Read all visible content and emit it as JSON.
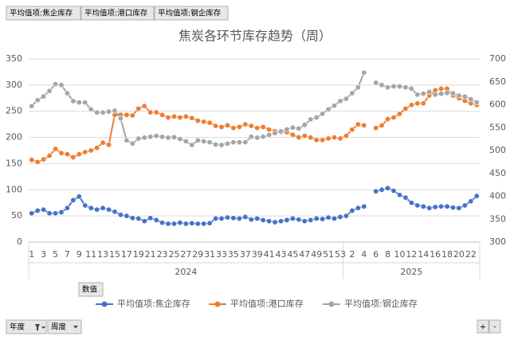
{
  "pivot": {
    "value_fields": [
      "平均值项:焦企库存",
      "平均值项:港口库存",
      "平均值项:钢企库存"
    ],
    "values_button": "数值",
    "axis_fields": [
      "年度",
      "周度"
    ],
    "zoom_buttons": [
      "+",
      "-"
    ]
  },
  "chart_data": {
    "type": "line",
    "title": "焦炭各环节库存趋势（周）",
    "category_groups": [
      {
        "label": "2024",
        "categories": [
          "1",
          null,
          "3",
          null,
          "5",
          null,
          "7",
          null,
          "9",
          null,
          "11",
          null,
          "13",
          null,
          "15",
          null,
          "17",
          null,
          "19",
          null,
          "21",
          null,
          "23",
          null,
          "25",
          null,
          "27",
          null,
          "29",
          null,
          "31",
          null,
          "33",
          null,
          "35",
          null,
          "37",
          null,
          "39",
          null,
          "41",
          null,
          "43",
          null,
          "45",
          null,
          "47",
          null,
          "49",
          null,
          "51",
          null,
          "53"
        ]
      },
      {
        "label": "2025",
        "categories": [
          null,
          "2",
          null,
          "4",
          null,
          "6",
          null,
          "8",
          null,
          "10",
          null,
          "12",
          null,
          "14",
          null,
          "16",
          null,
          "18",
          null,
          "20",
          null,
          "22",
          null
        ]
      }
    ],
    "series": [
      {
        "name": "平均值项:焦企库存",
        "color": "#4472c4",
        "values": [
          55,
          60,
          62,
          55,
          55,
          57,
          65,
          80,
          87,
          70,
          65,
          62,
          65,
          62,
          58,
          52,
          50,
          46,
          45,
          40,
          46,
          42,
          37,
          35,
          35,
          37,
          35,
          36,
          35,
          35,
          36,
          45,
          45,
          47,
          46,
          45,
          48,
          43,
          45,
          42,
          40,
          38,
          40,
          42,
          45,
          43,
          40,
          42,
          45,
          44,
          47,
          45,
          48,
          50,
          60,
          65,
          68,
          null,
          97,
          100,
          103,
          98,
          90,
          85,
          75,
          70,
          68,
          65,
          67,
          68,
          68,
          66,
          65,
          70,
          78,
          88
        ]
      },
      {
        "name": "平均值项:港口库存",
        "color": "#ed7d31",
        "values": [
          157,
          153,
          158,
          165,
          178,
          170,
          168,
          162,
          168,
          172,
          175,
          180,
          190,
          186,
          243,
          243,
          243,
          242,
          255,
          260,
          248,
          248,
          243,
          238,
          240,
          238,
          240,
          237,
          232,
          230,
          228,
          222,
          220,
          223,
          218,
          220,
          225,
          222,
          218,
          220,
          215,
          212,
          210,
          210,
          205,
          200,
          203,
          200,
          195,
          195,
          198,
          200,
          198,
          203,
          215,
          225,
          223,
          null,
          218,
          223,
          235,
          238,
          245,
          255,
          262,
          265,
          265,
          280,
          290,
          293,
          293,
          280,
          275,
          270,
          265,
          262
        ]
      },
      {
        "name": "平均值项:钢企库存",
        "color": "#a5a5a5",
        "axis": "y2",
        "values": [
          597,
          610,
          618,
          630,
          645,
          643,
          625,
          608,
          605,
          605,
          590,
          583,
          583,
          585,
          587,
          570,
          522,
          515,
          526,
          528,
          530,
          532,
          530,
          528,
          529,
          525,
          520,
          512,
          522,
          520,
          518,
          513,
          512,
          515,
          518,
          518,
          518,
          530,
          528,
          530,
          534,
          538,
          542,
          546,
          550,
          548,
          556,
          568,
          572,
          580,
          590,
          598,
          608,
          613,
          625,
          638,
          670,
          null,
          648,
          643,
          638,
          640,
          640,
          638,
          635,
          622,
          624,
          628,
          622,
          624,
          626,
          625,
          620,
          618,
          612,
          605
        ]
      }
    ],
    "ylim": [
      0,
      350
    ],
    "yticks": [
      0,
      50,
      100,
      150,
      200,
      250,
      300,
      350
    ],
    "y2lim": [
      300,
      700
    ],
    "y2ticks": [
      300,
      350,
      400,
      450,
      500,
      550,
      600,
      650,
      700
    ],
    "grid": true,
    "legend": "bottom"
  }
}
